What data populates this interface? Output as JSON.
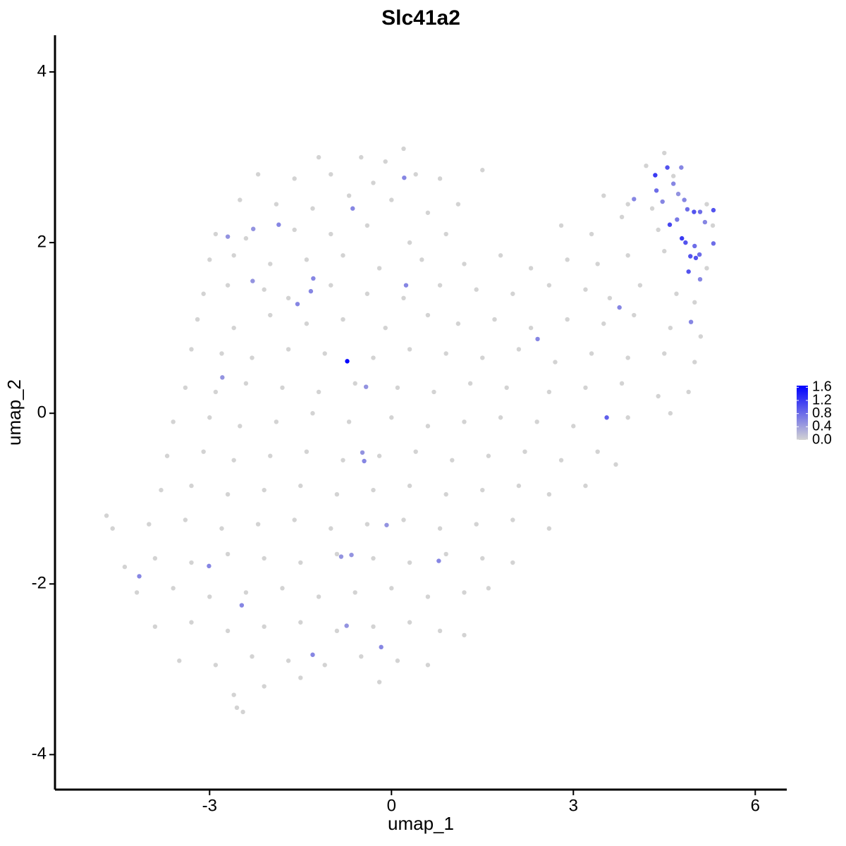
{
  "chart_data": {
    "type": "scatter",
    "title": "Slc41a2",
    "x_label": "umap_1",
    "y_label": "umap_2",
    "xlim": [
      -5.55,
      6.52
    ],
    "ylim": [
      -4.41,
      4.43
    ],
    "xticks": [
      -3,
      0,
      3,
      6
    ],
    "yticks": [
      -4,
      -2,
      0,
      2,
      4
    ],
    "color_low": "#d3d3d3",
    "color_high": "#0000ff",
    "clim": [
      0,
      1.65
    ],
    "cticks": [
      {
        "value": 0,
        "label": "0.0"
      },
      {
        "value": 0.4,
        "label": "0.4"
      },
      {
        "value": 0.8,
        "label": "0.8"
      },
      {
        "value": 1.2,
        "label": "1.2"
      },
      {
        "value": 1.6,
        "label": "1.6"
      }
    ],
    "x": [
      -1.2,
      -0.5,
      0.2,
      -0.1,
      4.5,
      -2.2,
      -1.6,
      -1.0,
      -0.3,
      0.4,
      0.8,
      1.5,
      4.2,
      4.65,
      -2.5,
      -1.9,
      -1.3,
      -0.7,
      0,
      0.6,
      1.1,
      3.5,
      3.9,
      4.3,
      5.2,
      -2.9,
      -2.4,
      -1.6,
      -1.0,
      -0.4,
      0.3,
      0.9,
      2.8,
      3.3,
      3.8,
      4.4,
      5.3,
      -3.0,
      -2.6,
      -2.0,
      -1.4,
      -0.8,
      -0.2,
      0.5,
      1.2,
      1.8,
      2.3,
      2.9,
      3.4,
      3.9,
      4.5,
      5.2,
      -3.1,
      -2.7,
      -2.1,
      -1.7,
      -1.0,
      -0.4,
      0.2,
      0.8,
      1.4,
      2.0,
      2.6,
      3.2,
      3.6,
      4.1,
      4.7,
      5.0,
      -3.2,
      -2.6,
      -2.0,
      -1.4,
      -0.8,
      -0.1,
      0.6,
      1.1,
      1.7,
      2.3,
      2.9,
      3.5,
      4.0,
      4.6,
      5.1,
      -3.3,
      -2.8,
      -2.3,
      -1.7,
      -1.1,
      -0.3,
      0.3,
      0.9,
      1.5,
      2.1,
      2.7,
      3.3,
      3.9,
      4.5,
      5.0,
      -3.4,
      -2.9,
      -2.4,
      -1.8,
      -1.2,
      -0.6,
      0.1,
      0.7,
      1.3,
      1.9,
      2.6,
      3.2,
      3.8,
      4.4,
      4.9,
      -3.6,
      -3.0,
      -2.5,
      -1.9,
      -1.3,
      -0.7,
      0.0,
      0.6,
      1.2,
      1.8,
      2.4,
      3.0,
      3.9,
      4.6,
      -3.7,
      -3.1,
      -2.6,
      -2.0,
      -1.4,
      -0.8,
      -0.2,
      0.4,
      1.0,
      1.6,
      2.2,
      2.8,
      3.4,
      3.7,
      -3.8,
      -3.3,
      -2.7,
      -2.1,
      -1.5,
      -0.9,
      -0.3,
      0.3,
      0.9,
      1.5,
      2.1,
      2.6,
      3.2,
      -4.7,
      -4.6,
      -4.0,
      -3.4,
      -2.8,
      -2.2,
      -1.6,
      -1.0,
      -0.4,
      0.2,
      0.8,
      1.4,
      2.0,
      2.6,
      -4.4,
      -3.9,
      -3.3,
      -2.7,
      -2.1,
      -1.5,
      -0.9,
      -0.3,
      0.3,
      0.9,
      1.5,
      2.0,
      -4.2,
      -3.6,
      -3.0,
      -2.4,
      -1.8,
      -1.2,
      -0.6,
      0.0,
      0.6,
      1.2,
      1.6,
      -3.9,
      -3.3,
      -2.7,
      -2.1,
      -1.5,
      -0.9,
      -0.3,
      0.3,
      0.8,
      1.2,
      -3.5,
      -2.9,
      -2.3,
      -1.7,
      -1.1,
      -0.5,
      0.1,
      0.6,
      -2.6,
      -2.1,
      -1.5,
      -0.2,
      -2.55,
      -2.45,
      4.35,
      4.55,
      4.78,
      4.37,
      4.47,
      4.65,
      4.73,
      4.83,
      4.88,
      4.99,
      5.09,
      5.31,
      5.17,
      4.71,
      4.59,
      4.79,
      4.85,
      5.0,
      5.02,
      4.93,
      5.08,
      5.31,
      4.9,
      5.09,
      4.94,
      4.0,
      3.76,
      3.55,
      2.41,
      0.21,
      -0.64,
      0.24,
      -1.29,
      -1.33,
      -1.55,
      -1.86,
      -2.28,
      -2.7,
      -2.29,
      -2.79,
      -0.42,
      -0.48,
      -0.45,
      -0.08,
      -0.83,
      -0.66,
      0.78,
      -0.74,
      -0.17,
      -1.3,
      -2.47,
      -3.01,
      -4.16,
      -0.73
    ],
    "y": [
      3.0,
      3.0,
      3.1,
      2.95,
      3.05,
      2.8,
      2.75,
      2.8,
      2.7,
      2.8,
      2.75,
      2.85,
      2.9,
      2.78,
      2.5,
      2.45,
      2.4,
      2.55,
      2.5,
      2.35,
      2.45,
      2.55,
      2.45,
      2.4,
      2.45,
      2.1,
      2.05,
      2.15,
      2.1,
      2.2,
      2.0,
      2.1,
      2.2,
      2.1,
      2.3,
      2.15,
      2.2,
      1.8,
      1.85,
      1.75,
      1.8,
      1.85,
      1.7,
      1.8,
      1.75,
      1.85,
      1.7,
      1.8,
      1.75,
      1.85,
      1.9,
      1.7,
      1.4,
      1.5,
      1.45,
      1.35,
      1.5,
      1.4,
      1.35,
      1.5,
      1.45,
      1.4,
      1.5,
      1.45,
      1.35,
      1.5,
      1.4,
      1.3,
      1.1,
      1.0,
      1.15,
      1.05,
      1.1,
      1.0,
      1.15,
      1.05,
      1.1,
      1.0,
      1.1,
      1.05,
      1.15,
      1.0,
      0.9,
      0.75,
      0.7,
      0.65,
      0.75,
      0.7,
      0.65,
      0.75,
      0.7,
      0.65,
      0.75,
      0.6,
      0.7,
      0.65,
      0.7,
      0.6,
      0.3,
      0.25,
      0.35,
      0.3,
      0.25,
      0.35,
      0.3,
      0.25,
      0.35,
      0.3,
      0.25,
      0.3,
      0.35,
      0.2,
      0.25,
      -0.1,
      -0.05,
      -0.15,
      -0.1,
      0.0,
      -0.1,
      -0.05,
      -0.15,
      -0.1,
      -0.05,
      -0.1,
      -0.15,
      -0.05,
      0.0,
      -0.5,
      -0.45,
      -0.55,
      -0.5,
      -0.45,
      -0.55,
      -0.5,
      -0.45,
      -0.55,
      -0.5,
      -0.45,
      -0.55,
      -0.45,
      -0.6,
      -0.9,
      -0.85,
      -0.95,
      -0.9,
      -0.85,
      -0.95,
      -0.9,
      -0.85,
      -0.95,
      -0.9,
      -0.85,
      -0.95,
      -0.85,
      -1.2,
      -1.35,
      -1.3,
      -1.25,
      -1.35,
      -1.3,
      -1.25,
      -1.35,
      -1.3,
      -1.25,
      -1.35,
      -1.3,
      -1.25,
      -1.35,
      -1.8,
      -1.7,
      -1.75,
      -1.65,
      -1.7,
      -1.75,
      -1.65,
      -1.7,
      -1.75,
      -1.65,
      -1.7,
      -1.75,
      -2.1,
      -2.05,
      -2.15,
      -2.1,
      -2.05,
      -2.15,
      -2.1,
      -2.05,
      -2.15,
      -2.1,
      -2.05,
      -2.5,
      -2.45,
      -2.55,
      -2.5,
      -2.45,
      -2.55,
      -2.5,
      -2.45,
      -2.55,
      -2.6,
      -2.9,
      -2.95,
      -2.85,
      -2.9,
      -2.95,
      -2.85,
      -2.9,
      -2.95,
      -3.3,
      -3.2,
      -3.1,
      -3.15,
      -3.45,
      -3.5,
      2.79,
      2.88,
      2.88,
      2.61,
      2.48,
      2.69,
      2.57,
      2.5,
      2.39,
      2.36,
      2.36,
      2.38,
      2.24,
      2.27,
      2.21,
      2.05,
      2.0,
      1.96,
      1.82,
      1.84,
      1.86,
      1.99,
      1.66,
      1.57,
      1.07,
      2.51,
      1.24,
      -0.05,
      0.87,
      2.76,
      2.4,
      1.5,
      1.58,
      1.43,
      1.28,
      2.21,
      2.16,
      2.07,
      1.55,
      0.42,
      0.31,
      -0.46,
      -0.56,
      -1.31,
      -1.68,
      -1.66,
      -1.73,
      -2.49,
      -2.74,
      -2.83,
      -2.25,
      -1.79,
      -1.91,
      0.61
    ],
    "values": [
      0,
      0,
      0,
      0,
      0,
      0,
      0,
      0,
      0,
      0,
      0,
      0,
      0,
      0,
      0,
      0,
      0,
      0,
      0,
      0,
      0,
      0,
      0,
      0,
      0,
      0,
      0,
      0,
      0,
      0,
      0,
      0,
      0,
      0,
      0,
      0,
      0,
      0,
      0,
      0,
      0,
      0,
      0,
      0,
      0,
      0,
      0,
      0,
      0,
      0,
      0,
      0,
      0,
      0,
      0,
      0,
      0,
      0,
      0,
      0,
      0,
      0,
      0,
      0,
      0,
      0,
      0,
      0,
      0,
      0,
      0,
      0,
      0,
      0,
      0,
      0,
      0,
      0,
      0,
      0,
      0,
      0,
      0,
      0,
      0,
      0,
      0,
      0,
      0,
      0,
      0,
      0,
      0,
      0,
      0,
      0,
      0,
      0,
      0,
      0,
      0,
      0,
      0,
      0,
      0,
      0,
      0,
      0,
      0,
      0,
      0,
      0,
      0,
      0,
      0,
      0,
      0,
      0,
      0,
      0,
      0,
      0,
      0,
      0,
      0,
      0,
      0,
      0,
      0,
      0,
      0,
      0,
      0,
      0,
      0,
      0,
      0,
      0,
      0,
      0,
      0,
      0,
      0,
      0,
      0,
      0,
      0,
      0,
      0,
      0,
      0,
      0,
      0,
      0,
      0,
      0,
      0,
      0,
      0,
      0,
      0,
      0,
      0,
      0,
      0,
      0,
      0,
      0,
      0,
      0,
      0,
      0,
      0,
      0,
      0,
      0,
      0,
      0,
      0,
      0,
      0,
      0,
      0,
      0,
      0,
      0,
      0,
      0,
      0,
      0,
      0,
      0,
      0,
      0,
      0,
      0,
      0,
      0,
      0,
      0,
      0,
      0,
      0,
      0,
      0,
      0,
      0,
      0,
      0,
      0,
      0,
      0,
      0,
      0,
      0,
      1.2,
      1.0,
      0.6,
      0.8,
      0.6,
      0.6,
      0.5,
      0.6,
      0.8,
      1.0,
      0.8,
      1.0,
      0.6,
      0.7,
      1.1,
      1.2,
      1.0,
      0.8,
      1.0,
      1.0,
      0.8,
      0.8,
      1.0,
      0.6,
      0.6,
      0.6,
      0.6,
      0.9,
      0.6,
      0.6,
      0.6,
      0.6,
      0.6,
      0.6,
      0.6,
      0.6,
      0.5,
      0.5,
      0.5,
      0.5,
      0.5,
      0.5,
      0.6,
      0.5,
      0.5,
      0.5,
      0.6,
      0.5,
      0.6,
      0.6,
      0.6,
      0.6,
      0.6,
      1.6
    ]
  }
}
